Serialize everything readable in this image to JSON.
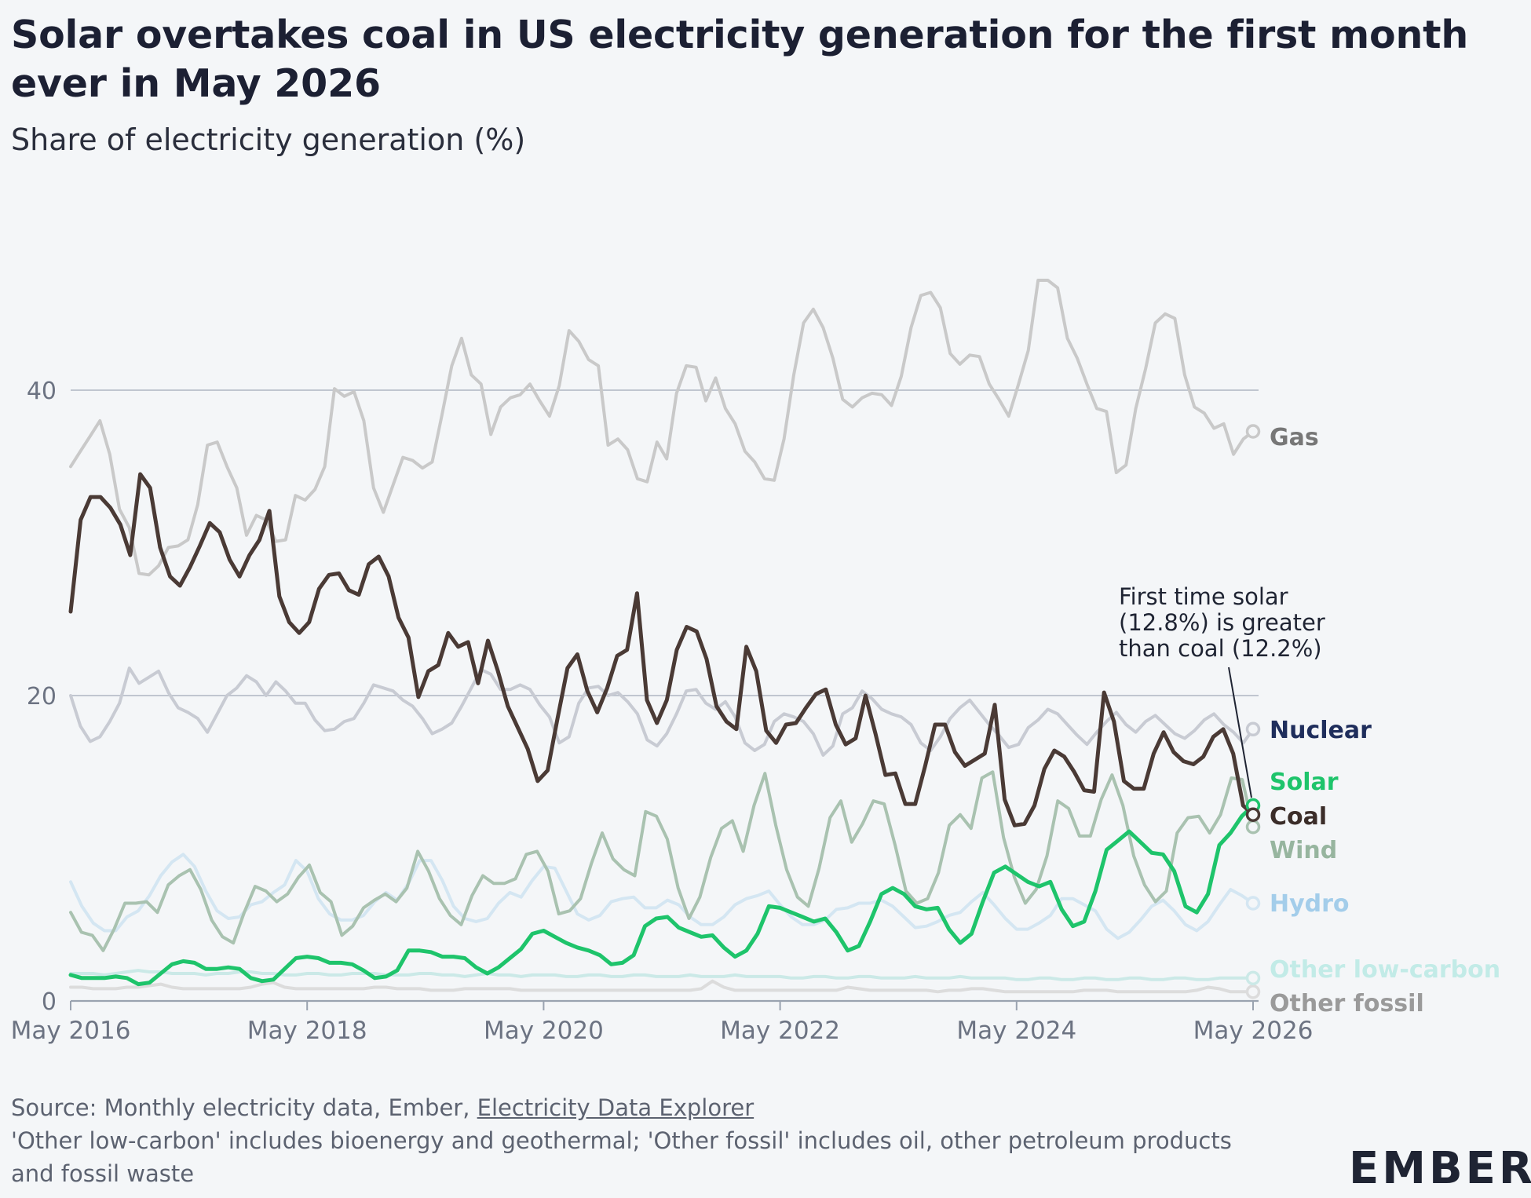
{
  "header": {
    "title": "Solar overtakes coal in US electricity generation for the first month ever in May 2026",
    "subtitle": "Share of electricity generation (%)"
  },
  "footer": {
    "source_prefix": "Source: Monthly electricity data, Ember, ",
    "source_link": "Electricity Data Explorer",
    "note": "'Other low-carbon' includes bioenergy and geothermal; 'Other fossil' includes oil, other petroleum products and fossil waste"
  },
  "brand": {
    "logo_text": "EMBER"
  },
  "chart_data": {
    "type": "line",
    "title": "Solar overtakes coal in US electricity generation for the first month ever in May 2026",
    "subtitle": "Share of electricity generation (%)",
    "x_range": [
      "2016-05",
      "2026-05"
    ],
    "x_ticks": [
      "May 2016",
      "May 2018",
      "May 2020",
      "May 2022",
      "May 2024",
      "May 2026"
    ],
    "y_ticks": [
      0,
      20,
      40
    ],
    "ylim": [
      0,
      48
    ],
    "grid": "horizontal",
    "annotation": {
      "text": [
        "First time solar",
        "(12.8%) is greater",
        "than coal (12.2%)"
      ],
      "x": "2026-05",
      "y": 12.8
    },
    "series": [
      {
        "name": "Gas",
        "color": "#c9c9c9",
        "label_color": "#777777",
        "end_value": 37.3,
        "start": "2016-05",
        "step": "1 month",
        "values": [
          35,
          36,
          37,
          38,
          35.8,
          32.2,
          31,
          28,
          27.9,
          28.5,
          29.7,
          29.8,
          30.2,
          32.5,
          36.4,
          36.6,
          35,
          33.6,
          30.5,
          31.8,
          31.5,
          30.1,
          30.2,
          33.1,
          32.8,
          33.5,
          35,
          40.1,
          39.6,
          39.9,
          38,
          33.6,
          32,
          33.8,
          35.6,
          35.4,
          34.9,
          35.3,
          38.4,
          41.6,
          43.4,
          41,
          40.4,
          37.1,
          38.9,
          39.5,
          39.7,
          40.4,
          39.3,
          38.3,
          40.3,
          43.9,
          43.2,
          42,
          41.6,
          36.4,
          36.8,
          36.1,
          34.2,
          34,
          36.6,
          35.5,
          39.8,
          41.6,
          41.5,
          39.3,
          40.8,
          38.8,
          37.8,
          36,
          35.3,
          34.2,
          34.1,
          36.8,
          41,
          44.4,
          45.3,
          44.1,
          42.1,
          39.4,
          38.9,
          39.5,
          39.8,
          39.7,
          39,
          40.9,
          44.1,
          46.2,
          46.4,
          45.4,
          42.4,
          41.7,
          42.3,
          42.2,
          40.4,
          39.4,
          38.3,
          40.4,
          42.6,
          47.2,
          47.2,
          46.7,
          43.4,
          42.1,
          40.4,
          38.8,
          38.6,
          34.6,
          35.1,
          38.8,
          41.4,
          44.4,
          45,
          44.7,
          41,
          38.9,
          38.5,
          37.5,
          37.8,
          35.8,
          36.8,
          37.3
        ]
      },
      {
        "name": "Coal",
        "color": "#4a3a35",
        "label_color": "#3b2d29",
        "end_value": 12.2,
        "start": "2016-05",
        "step": "1 month",
        "values": [
          25.5,
          31.5,
          33,
          33,
          32.3,
          31.2,
          29.2,
          34.5,
          33.6,
          29.7,
          27.8,
          27.2,
          28.4,
          29.8,
          31.3,
          30.7,
          28.9,
          27.8,
          29.2,
          30.2,
          32.1,
          26.5,
          24.8,
          24.1,
          24.8,
          27,
          27.9,
          28,
          26.9,
          26.6,
          28.6,
          29.1,
          27.8,
          25.1,
          23.8,
          19.9,
          21.6,
          22,
          24.1,
          23.2,
          23.5,
          20.8,
          23.6,
          21.6,
          19.3,
          17.9,
          16.5,
          14.4,
          15.1,
          18.5,
          21.8,
          22.7,
          20.3,
          18.9,
          20.5,
          22.6,
          23,
          26.7,
          19.7,
          18.2,
          19.7,
          23,
          24.5,
          24.2,
          22.4,
          19.3,
          18.3,
          17.8,
          23.2,
          21.6,
          17.7,
          16.9,
          18.1,
          18.2,
          19.2,
          20.1,
          20.4,
          18.1,
          16.8,
          17.2,
          20,
          17.5,
          14.8,
          14.9,
          12.9,
          12.9,
          15.4,
          18.1,
          18.1,
          16.3,
          15.4,
          15.8,
          16.2,
          19.4,
          13.2,
          11.5,
          11.6,
          12.8,
          15.2,
          16.4,
          16,
          15,
          13.8,
          13.7,
          20.2,
          18.3,
          14.4,
          13.9,
          13.9,
          16.2,
          17.6,
          16.3,
          15.7,
          15.5,
          16,
          17.3,
          17.8,
          16.2,
          12.8,
          12.2
        ]
      },
      {
        "name": "Nuclear",
        "color": "#c8cbd3",
        "label_color": "#1f2e5c",
        "end_value": 17.8,
        "start": "2016-05",
        "step": "1 month",
        "values": [
          20,
          18,
          17,
          17.3,
          18.3,
          19.5,
          21.8,
          20.8,
          21.2,
          21.6,
          20.2,
          19.2,
          18.9,
          18.5,
          17.6,
          18.8,
          20,
          20.5,
          21.3,
          20.9,
          20,
          20.9,
          20.3,
          19.5,
          19.5,
          18.4,
          17.7,
          17.8,
          18.3,
          18.5,
          19.5,
          20.7,
          20.5,
          20.3,
          19.7,
          19.3,
          18.5,
          17.5,
          17.8,
          18.2,
          19.3,
          20.5,
          21.7,
          21.4,
          20.4,
          20.4,
          20.7,
          20.4,
          19.4,
          18.6,
          16.9,
          17.3,
          19.5,
          20.5,
          20.6,
          20,
          20.2,
          19.6,
          18.8,
          17.1,
          16.7,
          17.5,
          18.8,
          20.3,
          20.4,
          19.5,
          19.1,
          19.6,
          18.6,
          16.9,
          16.4,
          16.8,
          18.3,
          18.8,
          18.6,
          18.3,
          17.5,
          16.1,
          16.7,
          18.8,
          19.2,
          20.3,
          19.8,
          19.1,
          18.8,
          18.6,
          18.1,
          16.9,
          16.4,
          17.3,
          18.5,
          19.2,
          19.7,
          18.9,
          18.1,
          17.4,
          16.6,
          16.8,
          17.9,
          18.4,
          19.1,
          18.8,
          18.1,
          17.4,
          16.8,
          17.6,
          18.3,
          18.9,
          18.1,
          17.6,
          18.3,
          18.7,
          18.1,
          17.5,
          17.2,
          17.7,
          18.4,
          18.8,
          18.1,
          17.6,
          16.9,
          17.8
        ]
      },
      {
        "name": "Solar",
        "color": "#1ec46b",
        "label_color": "#1ec46b",
        "end_value": 12.8,
        "start": "2016-05",
        "step": "1 month",
        "values": [
          1.7,
          1.5,
          1.5,
          1.5,
          1.6,
          1.5,
          1.1,
          1.2,
          1.8,
          2.4,
          2.6,
          2.5,
          2.1,
          2.1,
          2.2,
          2.1,
          1.5,
          1.3,
          1.4,
          2.1,
          2.8,
          2.9,
          2.8,
          2.5,
          2.5,
          2.4,
          2,
          1.5,
          1.6,
          2,
          3.3,
          3.3,
          3.2,
          2.9,
          2.9,
          2.8,
          2.2,
          1.8,
          2.2,
          2.8,
          3.4,
          4.4,
          4.6,
          4.2,
          3.8,
          3.5,
          3.3,
          3,
          2.4,
          2.5,
          3,
          4.9,
          5.4,
          5.5,
          4.8,
          4.5,
          4.2,
          4.3,
          3.5,
          2.9,
          3.3,
          4.4,
          6.2,
          6.1,
          5.8,
          5.5,
          5.2,
          5.4,
          4.5,
          3.3,
          3.6,
          5.2,
          7,
          7.4,
          7,
          6.2,
          6,
          6.1,
          4.7,
          3.8,
          4.4,
          6.5,
          8.4,
          8.8,
          8.3,
          7.8,
          7.5,
          7.8,
          6,
          4.9,
          5.2,
          7.2,
          9.9,
          10.5,
          11.1,
          10.4,
          9.7,
          9.6,
          8.5,
          6.2,
          5.8,
          7,
          10.2,
          11,
          12.1,
          12.8
        ]
      },
      {
        "name": "Wind",
        "color": "#a9c2b0",
        "label_color": "#97b59f",
        "end_value": 11.4,
        "start": "2016-05",
        "step": "1 month",
        "values": [
          5.8,
          4.5,
          4.3,
          3.3,
          4.7,
          6.4,
          6.4,
          6.5,
          5.8,
          7.6,
          8.2,
          8.6,
          7.3,
          5.3,
          4.2,
          3.8,
          5.8,
          7.5,
          7.2,
          6.5,
          7,
          8.1,
          8.9,
          7.1,
          6.5,
          4.3,
          4.9,
          6.1,
          6.6,
          7,
          6.5,
          7.4,
          9.8,
          8.5,
          6.7,
          5.6,
          5,
          6.9,
          8.2,
          7.7,
          7.7,
          8,
          9.6,
          9.8,
          8.5,
          5.7,
          5.9,
          6.7,
          9,
          11,
          9.3,
          8.6,
          8.2,
          12.4,
          12.1,
          10.6,
          7.4,
          5.4,
          6.8,
          9.4,
          11.3,
          11.8,
          9.8,
          12.8,
          14.9,
          11.5,
          8.6,
          6.8,
          6.2,
          8.7,
          12,
          13.1,
          10.4,
          11.6,
          13.1,
          12.9,
          10.2,
          7.2,
          6.4,
          6.7,
          8.4,
          11.5,
          12.2,
          11.3,
          14.6,
          15,
          10.7,
          8.1,
          6.4,
          7.3,
          9.5,
          13.1,
          12.6,
          10.8,
          10.8,
          13.2,
          14.8,
          12.8,
          9.5,
          7.6,
          6.5,
          7.2,
          11,
          12,
          12.1,
          11,
          12.2,
          14.6,
          14.5,
          11.4
        ]
      },
      {
        "name": "Hydro",
        "color": "#d4e6f2",
        "label_color": "#a3cdea",
        "end_value": 6.4,
        "start": "2016-05",
        "step": "1 month",
        "values": [
          7.8,
          6.2,
          5.1,
          4.6,
          4.6,
          5.5,
          5.9,
          6.9,
          8.2,
          9.1,
          9.6,
          8.8,
          7.2,
          5.9,
          5.4,
          5.5,
          6.3,
          6.5,
          7.1,
          7.6,
          9.2,
          8.5,
          6.7,
          5.7,
          5.3,
          5.3,
          5.6,
          6.5,
          7.1,
          6.6,
          7.7,
          9.2,
          9.2,
          7.9,
          6.2,
          5.4,
          5.2,
          5.4,
          6.4,
          7.1,
          6.8,
          7.9,
          8.8,
          8.7,
          7.2,
          5.7,
          5.3,
          5.6,
          6.5,
          6.7,
          6.8,
          6.1,
          6.1,
          6.6,
          6.3,
          5.5,
          5,
          5,
          5.5,
          6.3,
          6.7,
          6.9,
          7.2,
          6.3,
          5.5,
          5,
          5,
          5.3,
          6,
          6.1,
          6.4,
          6.4,
          6.6,
          6.2,
          5.5,
          4.8,
          4.9,
          5.2,
          5.6,
          5.8,
          6.5,
          7.1,
          6.3,
          5.4,
          4.7,
          4.7,
          5.1,
          5.6,
          6.7,
          6.7,
          6.3,
          5.9,
          4.7,
          4.1,
          4.5,
          5.3,
          6.2,
          6.6,
          5.9,
          5,
          4.6,
          5.2,
          6.3,
          7.3,
          6.9,
          6.4
        ]
      },
      {
        "name": "Other low-carbon",
        "color": "#cbe9e7",
        "label_color": "#c2ebe7",
        "end_value": 1.5,
        "start": "2016-05",
        "step": "1 month",
        "values": [
          1.8,
          1.8,
          1.8,
          1.7,
          1.8,
          1.9,
          2,
          1.9,
          1.9,
          1.8,
          1.8,
          1.8,
          1.7,
          1.8,
          1.8,
          1.9,
          1.9,
          1.8,
          1.8,
          1.7,
          1.7,
          1.8,
          1.8,
          1.7,
          1.7,
          1.8,
          1.8,
          1.8,
          1.7,
          1.7,
          1.7,
          1.8,
          1.8,
          1.7,
          1.7,
          1.6,
          1.7,
          1.8,
          1.7,
          1.7,
          1.6,
          1.7,
          1.7,
          1.7,
          1.6,
          1.6,
          1.7,
          1.7,
          1.6,
          1.6,
          1.7,
          1.7,
          1.6,
          1.6,
          1.6,
          1.7,
          1.6,
          1.6,
          1.6,
          1.7,
          1.6,
          1.6,
          1.6,
          1.6,
          1.5,
          1.5,
          1.6,
          1.6,
          1.5,
          1.5,
          1.6,
          1.6,
          1.5,
          1.5,
          1.5,
          1.6,
          1.5,
          1.5,
          1.5,
          1.6,
          1.5,
          1.5,
          1.5,
          1.5,
          1.4,
          1.4,
          1.5,
          1.5,
          1.4,
          1.4,
          1.5,
          1.5,
          1.4,
          1.4,
          1.5,
          1.5,
          1.4,
          1.4,
          1.5,
          1.5,
          1.4,
          1.4,
          1.5,
          1.5,
          1.5,
          1.5
        ]
      },
      {
        "name": "Other fossil",
        "color": "#dcdcdc",
        "label_color": "#9a9a9a",
        "end_value": 0.6,
        "start": "2016-05",
        "step": "1 month",
        "values": [
          0.9,
          0.9,
          0.8,
          0.8,
          0.8,
          0.9,
          0.9,
          1,
          1.1,
          0.9,
          0.8,
          0.8,
          0.8,
          0.8,
          0.8,
          0.8,
          0.9,
          1.1,
          1.2,
          0.9,
          0.8,
          0.8,
          0.8,
          0.8,
          0.8,
          0.8,
          0.8,
          0.9,
          0.9,
          0.8,
          0.8,
          0.8,
          0.7,
          0.7,
          0.7,
          0.8,
          0.8,
          0.8,
          0.8,
          0.8,
          0.7,
          0.7,
          0.7,
          0.7,
          0.7,
          0.7,
          0.7,
          0.7,
          0.7,
          0.7,
          0.7,
          0.7,
          0.7,
          0.7,
          0.7,
          0.7,
          0.8,
          1.3,
          0.9,
          0.7,
          0.7,
          0.7,
          0.7,
          0.7,
          0.7,
          0.7,
          0.7,
          0.7,
          0.7,
          0.9,
          0.8,
          0.7,
          0.7,
          0.7,
          0.7,
          0.7,
          0.7,
          0.6,
          0.7,
          0.7,
          0.8,
          0.8,
          0.7,
          0.6,
          0.6,
          0.6,
          0.6,
          0.6,
          0.6,
          0.6,
          0.7,
          0.7,
          0.7,
          0.6,
          0.6,
          0.6,
          0.6,
          0.6,
          0.6,
          0.6,
          0.7,
          0.9,
          0.8,
          0.6,
          0.6,
          0.6
        ]
      }
    ]
  }
}
